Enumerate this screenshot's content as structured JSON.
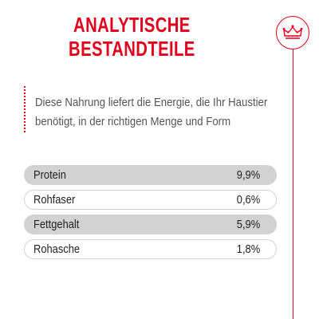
{
  "header": {
    "title_line1": "ANALYTISCHE",
    "title_line2": "BESTANDTEILE",
    "brand_color": "#e2001a",
    "badge_icon": "crown-icon"
  },
  "description": {
    "line1": "Diese Nahrung liefert die Energie, die Ihr Haustier",
    "line2": "benötigt, in der richtigen Menge und Form"
  },
  "nutrients": [
    {
      "label": "Protein",
      "value": "9,9%"
    },
    {
      "label": "Rohfaser",
      "value": "0,6%"
    },
    {
      "label": "Fettgehalt",
      "value": "5,9%"
    },
    {
      "label": "Rohasche",
      "value": "1,8%"
    }
  ]
}
